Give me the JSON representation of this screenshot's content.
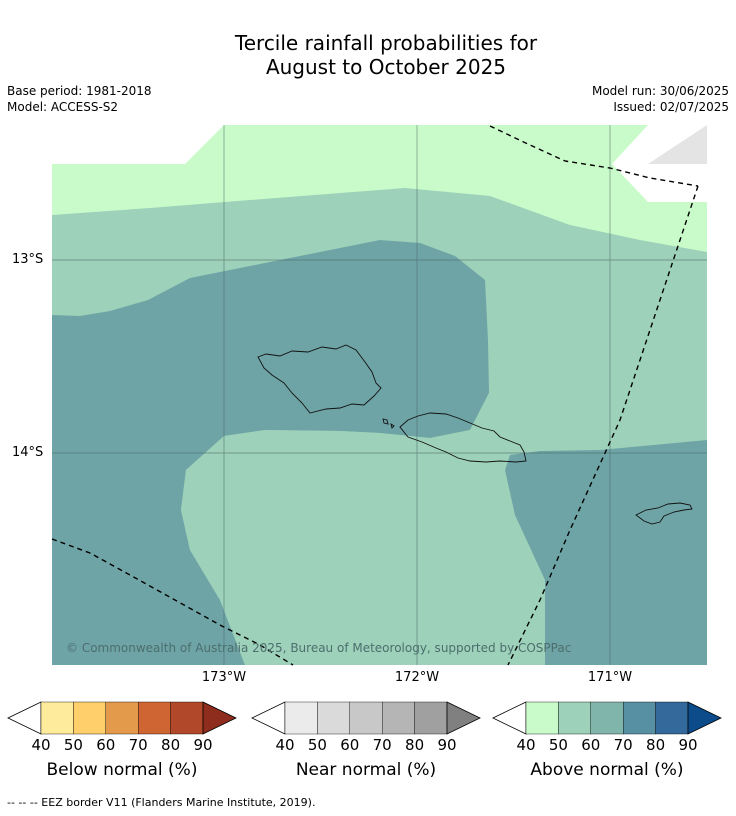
{
  "title_line1": "Tercile rainfall probabilities for",
  "title_line2": "August to October 2025",
  "base_period": "Base period: 1981-2018",
  "model": "Model: ACCESS-S2",
  "model_run": "Model run: 30/06/2025",
  "issued": "Issued: 02/07/2025",
  "lon_ticks": [
    "173°W",
    "172°W",
    "171°W"
  ],
  "lat_ticks": [
    "13°S",
    "14°S"
  ],
  "copyright": "© Commonwealth of Australia 2025, Bureau of Meteorology, supported by COSPPac",
  "footer": "--  --  -- EEZ border V11 (Flanders Marine Institute, 2019).",
  "colorbars": [
    {
      "label": "Below normal (%)",
      "ticks": [
        "40",
        "50",
        "60",
        "70",
        "80",
        "90"
      ],
      "colors": [
        "#ffffff",
        "#ffeb9c",
        "#fecf6b",
        "#e39a4a",
        "#cf6533",
        "#b2482a",
        "#8e2d1e"
      ]
    },
    {
      "label": "Near normal (%)",
      "ticks": [
        "40",
        "50",
        "60",
        "70",
        "80",
        "90"
      ],
      "colors": [
        "#ffffff",
        "#ebebeb",
        "#dadada",
        "#c8c8c8",
        "#b5b5b5",
        "#a0a0a0",
        "#808080"
      ]
    },
    {
      "label": "Above normal (%)",
      "ticks": [
        "40",
        "50",
        "60",
        "70",
        "80",
        "90"
      ],
      "colors": [
        "#ffffff",
        "#c9fbca",
        "#9dd1b9",
        "#7fb5ab",
        "#5690a2",
        "#336a9b",
        "#0c4c8a"
      ]
    }
  ],
  "map_colors": {
    "band_50": "#c9fbca",
    "band_60": "#9dd1b9",
    "band_70": "#6ea4a6",
    "no_data": "#e4e4e4"
  }
}
